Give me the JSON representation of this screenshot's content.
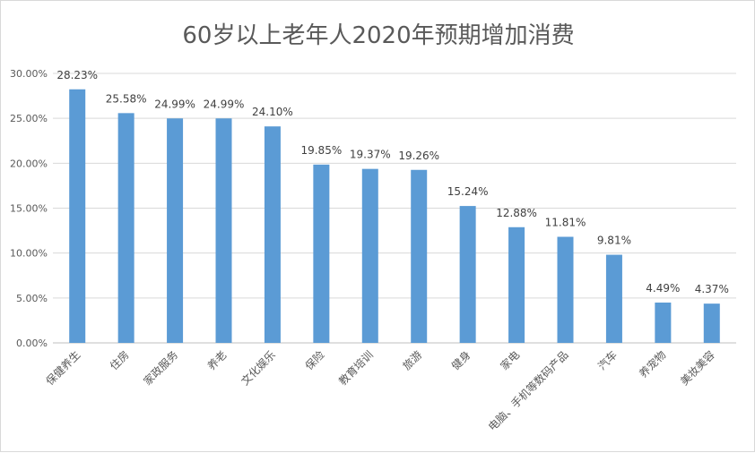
{
  "chart_data": {
    "type": "bar",
    "title": "60岁以上老年人2020年预期增加消费",
    "xlabel": "",
    "ylabel": "",
    "ylim": [
      0,
      30
    ],
    "y_ticks": [
      "0.00%",
      "5.00%",
      "10.00%",
      "15.00%",
      "20.00%",
      "25.00%",
      "30.00%"
    ],
    "grid": true,
    "bar_color": "#5B9BD5",
    "categories": [
      "保健养生",
      "住房",
      "家政服务",
      "养老",
      "文化娱乐",
      "保险",
      "教育培训",
      "旅游",
      "健身",
      "家电",
      "电脑、手机等数码产品",
      "汽车",
      "养宠物",
      "美妆美容"
    ],
    "values": [
      28.23,
      25.58,
      24.99,
      24.99,
      24.1,
      19.85,
      19.37,
      19.26,
      15.24,
      12.88,
      11.81,
      9.81,
      4.49,
      4.37
    ],
    "data_labels": [
      "28.23%",
      "25.58%",
      "24.99%",
      "24.99%",
      "24.10%",
      "19.85%",
      "19.37%",
      "19.26%",
      "15.24%",
      "12.88%",
      "11.81%",
      "9.81%",
      "4.49%",
      "4.37%"
    ]
  }
}
